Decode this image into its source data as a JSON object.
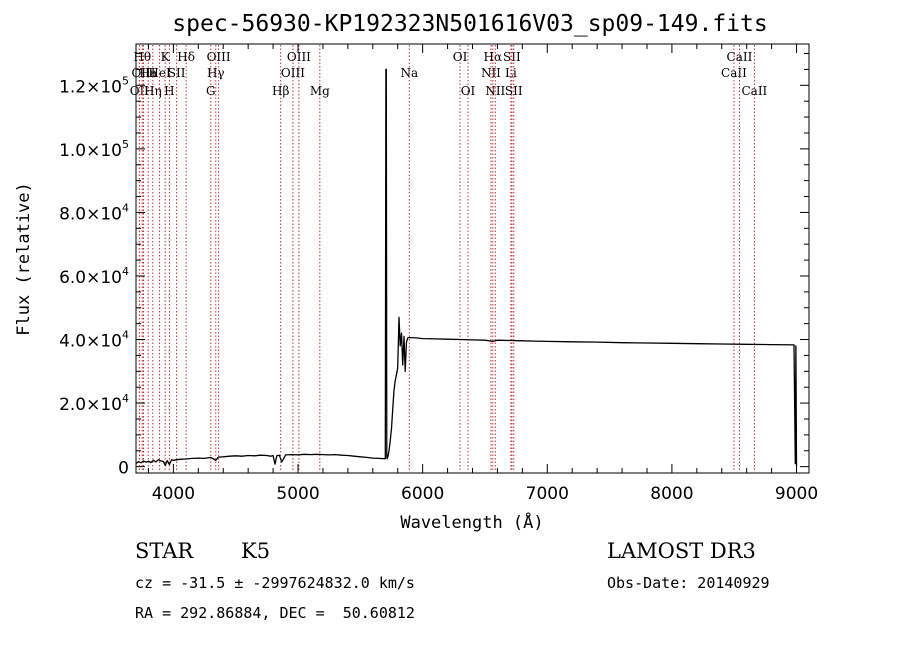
{
  "chart_data": {
    "type": "line",
    "title": "spec-56930-KP192323N501616V03_sp09-149.fits",
    "xlabel": "Wavelength (Å)",
    "ylabel": "Flux (relative)",
    "xlim": [
      3700,
      9100
    ],
    "ylim": [
      -2000,
      133000
    ],
    "xticks": [
      4000,
      5000,
      6000,
      7000,
      8000,
      9000
    ],
    "yticks": [
      {
        "value": 0,
        "mant": "0",
        "exp": ""
      },
      {
        "value": 20000,
        "mant": "2.0×10",
        "exp": "4"
      },
      {
        "value": 40000,
        "mant": "4.0×10",
        "exp": "4"
      },
      {
        "value": 60000,
        "mant": "6.0×10",
        "exp": "4"
      },
      {
        "value": 80000,
        "mant": "8.0×10",
        "exp": "4"
      },
      {
        "value": 100000,
        "mant": "1.0×10",
        "exp": "5"
      },
      {
        "value": 120000,
        "mant": "1.2×10",
        "exp": "5"
      }
    ],
    "grid": false,
    "series": [
      {
        "color": "#000000",
        "x": [
          3700,
          3720,
          3740,
          3760,
          3780,
          3800,
          3820,
          3840,
          3860,
          3880,
          3900,
          3920,
          3935,
          3950,
          3968,
          3985,
          4000,
          4050,
          4100,
          4150,
          4200,
          4250,
          4300,
          4340,
          4360,
          4400,
          4450,
          4500,
          4550,
          4600,
          4650,
          4700,
          4750,
          4780,
          4800,
          4815,
          4830,
          4850,
          4870,
          4900,
          4950,
          5000,
          5050,
          5100,
          5150,
          5200,
          5250,
          5300,
          5350,
          5400,
          5450,
          5500,
          5550,
          5600,
          5650,
          5700,
          5705,
          5708,
          5712,
          5715,
          5720,
          5730,
          5740,
          5750,
          5760,
          5770,
          5780,
          5790,
          5800,
          5810,
          5820,
          5830,
          5840,
          5850,
          5860,
          5870,
          5880,
          5890,
          5900,
          5950,
          6000,
          6100,
          6200,
          6300,
          6400,
          6500,
          6563,
          6600,
          6700,
          6800,
          6900,
          7000,
          7200,
          7400,
          7600,
          7800,
          8000,
          8200,
          8400,
          8600,
          8800,
          8980,
          8990,
          8995,
          9000
        ],
        "y": [
          1000,
          1600,
          1200,
          1800,
          1400,
          1700,
          1300,
          2000,
          1500,
          2200,
          1800,
          1600,
          400,
          1900,
          600,
          2200,
          2000,
          2300,
          2400,
          2600,
          2700,
          2600,
          2900,
          2000,
          3000,
          3100,
          3300,
          3400,
          3300,
          3500,
          3400,
          3600,
          3500,
          3300,
          3500,
          800,
          3400,
          3600,
          1500,
          3700,
          3800,
          3700,
          3900,
          3800,
          3900,
          3800,
          3700,
          3800,
          3600,
          3500,
          3300,
          3100,
          2900,
          2700,
          2600,
          2500,
          125000,
          125000,
          3000,
          2500,
          3000,
          5000,
          8000,
          12000,
          18000,
          24000,
          27000,
          29000,
          31000,
          47000,
          38000,
          42000,
          32000,
          41000,
          30000,
          39000,
          40500,
          40600,
          40600,
          40500,
          40300,
          40200,
          40100,
          40000,
          39900,
          39800,
          39400,
          39800,
          39700,
          39600,
          39500,
          39400,
          39300,
          39200,
          39000,
          38900,
          38800,
          38700,
          38600,
          38500,
          38400,
          38300,
          1000,
          38000,
          100
        ]
      }
    ],
    "line_markers": [
      {
        "wl": 3727,
        "row": 2,
        "label": "OII"
      },
      {
        "wl": 3750,
        "row": 0,
        "label": "Hθ"
      },
      {
        "wl": 3760,
        "row": 1,
        "label": "OIII"
      },
      {
        "wl": 3798,
        "row": 1,
        "label": "Ha"
      },
      {
        "wl": 3835,
        "row": 2,
        "label": "Hη"
      },
      {
        "wl": 3889,
        "row": 1,
        "label": "HeI"
      },
      {
        "wl": 3934,
        "row": 0,
        "label": "K"
      },
      {
        "wl": 3968,
        "row": 2,
        "label": "H"
      },
      {
        "wl": 4026,
        "row": 1,
        "label": "SII"
      },
      {
        "wl": 4102,
        "row": 0,
        "label": "Hδ"
      },
      {
        "wl": 4300,
        "row": 2,
        "label": "G"
      },
      {
        "wl": 4340,
        "row": 1,
        "label": "Hγ"
      },
      {
        "wl": 4363,
        "row": 0,
        "label": "OIII"
      },
      {
        "wl": 4861,
        "row": 2,
        "label": "Hβ"
      },
      {
        "wl": 4959,
        "row": 1,
        "label": "OIII"
      },
      {
        "wl": 5007,
        "row": 0,
        "label": "OIII"
      },
      {
        "wl": 5175,
        "row": 2,
        "label": "Mg"
      },
      {
        "wl": 5893,
        "row": 1,
        "label": "Na"
      },
      {
        "wl": 6300,
        "row": 0,
        "label": "OI"
      },
      {
        "wl": 6364,
        "row": 2,
        "label": "OI"
      },
      {
        "wl": 6548,
        "row": 1,
        "label": "NII"
      },
      {
        "wl": 6563,
        "row": 0,
        "label": "Hα"
      },
      {
        "wl": 6583,
        "row": 2,
        "label": "NII"
      },
      {
        "wl": 6708,
        "row": 1,
        "label": "Li"
      },
      {
        "wl": 6716,
        "row": 0,
        "label": "SII"
      },
      {
        "wl": 6731,
        "row": 2,
        "label": "SII"
      },
      {
        "wl": 8498,
        "row": 1,
        "label": "CaII"
      },
      {
        "wl": 8542,
        "row": 0,
        "label": "CaII"
      },
      {
        "wl": 8662,
        "row": 2,
        "label": "CaII"
      }
    ]
  },
  "info": {
    "object_class": "STAR",
    "subclass": "K5",
    "survey": "LAMOST DR3",
    "redshift_line": "cz = -31.5 ± -2997624832.0 km/s",
    "obs_date_line": "Obs-Date: 20140929",
    "coords_line": "RA = 292.86884, DEC =  50.60812"
  }
}
